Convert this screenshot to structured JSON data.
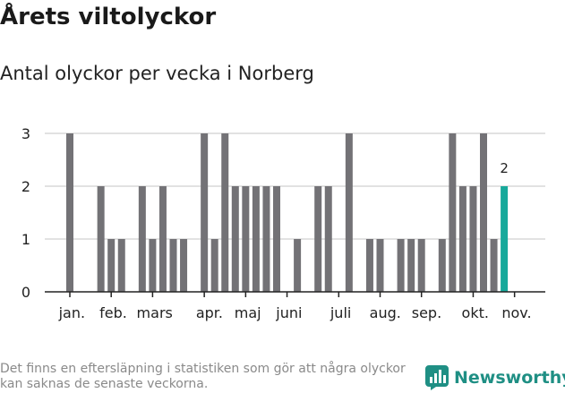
{
  "title": "Årets viltolyckor",
  "subtitle": "Antal olyckor per vecka i Norberg",
  "footnote": "Det finns en eftersläpning i statistiken som gör att några olyckor kan saknas de senaste veckorna.",
  "brand": {
    "name": "Newsworthy"
  },
  "colors": {
    "bar": "#737276",
    "highlight": "#17a99b",
    "grid": "#d9d9d9",
    "axis": "#222222",
    "brand": "#1f8f84"
  },
  "chart_data": {
    "type": "bar",
    "title": "Årets viltolyckor",
    "subtitle": "Antal olyckor per vecka i Norberg",
    "xlabel": "",
    "ylabel": "",
    "ylim": [
      0,
      3
    ],
    "yticks": [
      0,
      1,
      2,
      3
    ],
    "weeks": [
      1,
      2,
      3,
      4,
      5,
      6,
      7,
      8,
      9,
      10,
      11,
      12,
      13,
      14,
      15,
      16,
      17,
      18,
      19,
      20,
      21,
      22,
      23,
      24,
      25,
      26,
      27,
      28,
      29,
      30,
      31,
      32,
      33,
      34,
      35,
      36,
      37,
      38,
      39,
      40,
      41,
      42,
      43,
      44,
      45,
      46
    ],
    "values": [
      3,
      0,
      0,
      2,
      1,
      1,
      0,
      2,
      1,
      2,
      1,
      1,
      0,
      3,
      1,
      3,
      2,
      2,
      2,
      2,
      2,
      0,
      1,
      0,
      2,
      2,
      0,
      3,
      0,
      1,
      1,
      0,
      1,
      1,
      1,
      0,
      1,
      3,
      2,
      2,
      3,
      1,
      2,
      0,
      0,
      0
    ],
    "highlight_index": 42,
    "highlight_label": "2",
    "month_labels": [
      {
        "label": "jan.",
        "week": 1.2
      },
      {
        "label": "feb.",
        "week": 5.2
      },
      {
        "label": "mars",
        "week": 9.2
      },
      {
        "label": "apr.",
        "week": 14.5
      },
      {
        "label": "maj",
        "week": 18.2
      },
      {
        "label": "juni",
        "week": 22.2
      },
      {
        "label": "juli",
        "week": 27.2
      },
      {
        "label": "aug.",
        "week": 31.5
      },
      {
        "label": "sep.",
        "week": 35.5
      },
      {
        "label": "okt.",
        "week": 40.2
      },
      {
        "label": "nov.",
        "week": 44.2
      }
    ],
    "month_tick_weeks": [
      1,
      5,
      9,
      14,
      18,
      22,
      27,
      31,
      35,
      40,
      44
    ]
  }
}
